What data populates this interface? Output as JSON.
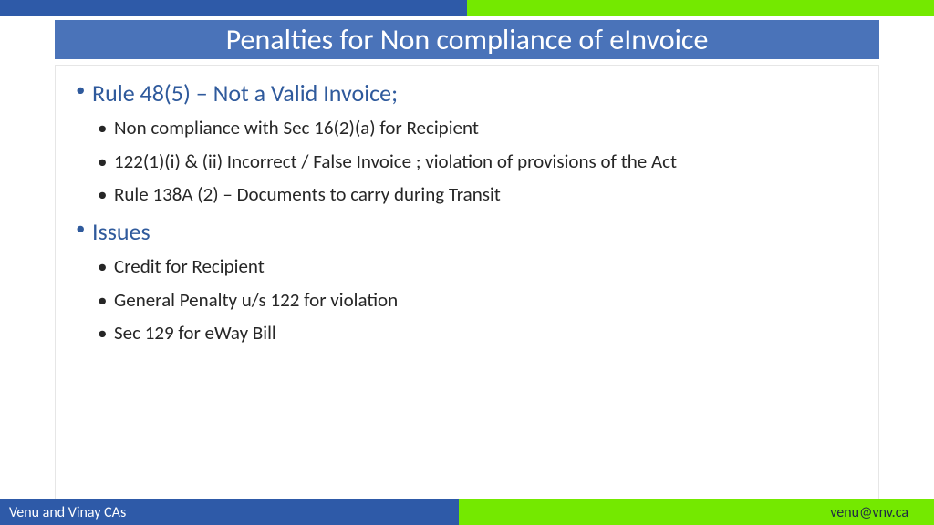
{
  "colors": {
    "blue": "#2e5aa8",
    "green": "#74e900",
    "title_bg": "#4a73b9",
    "title_text": "#396ab8",
    "heading_text": "#2f5a9c",
    "body_text": "#262626",
    "border": "#e6e6e6",
    "white": "#ffffff"
  },
  "title": "Penalties for Non compliance of eInvoice",
  "sections": [
    {
      "heading": "Rule 48(5) – Not a Valid Invoice;",
      "items": [
        "Non compliance with Sec 16(2)(a) for Recipient",
        "122(1)(i) & (ii) Incorrect / False Invoice  ; violation of provisions of the Act",
        "Rule 138A (2) – Documents to carry during Transit"
      ]
    },
    {
      "heading": "Issues",
      "items": [
        "Credit for Recipient",
        "General Penalty u/s 122 for violation",
        "Sec 129 for eWay Bill"
      ]
    }
  ],
  "footer": {
    "left": "Venu and  Vinay CAs",
    "right": "venu@vnv.ca"
  }
}
